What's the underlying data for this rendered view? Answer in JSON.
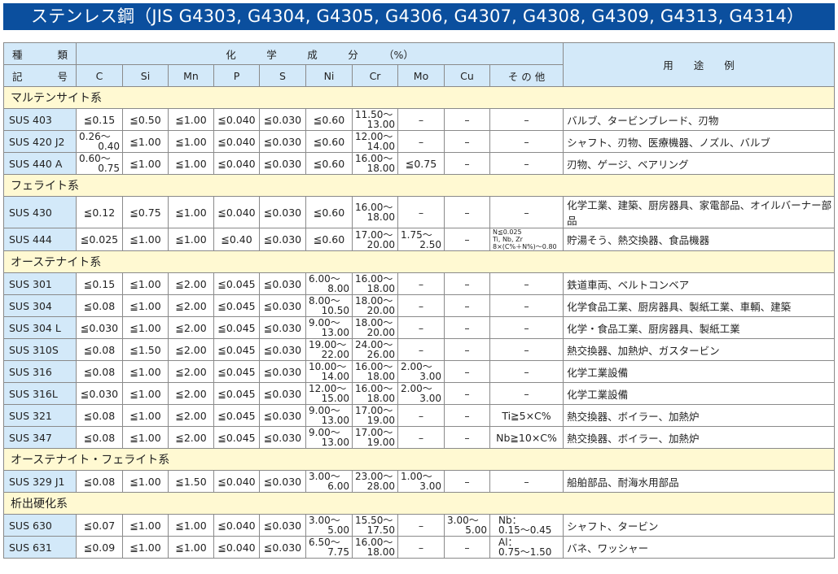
{
  "title": "ステンレス鋼（JIS G4303, G4304, G4305, G4306, G4307, G4308, G4309, G4313, G4314）",
  "header": {
    "kind_top": [
      "種",
      "類"
    ],
    "kind_bottom": [
      "記",
      "号"
    ],
    "chem": "化　　　学　　　成　　　分　　　（%）",
    "columns": [
      "C",
      "Si",
      "Mn",
      "P",
      "S",
      "Ni",
      "Cr",
      "Mo",
      "Cu",
      "そ の 他"
    ],
    "use": "用　　途　　例"
  },
  "sections": [
    {
      "name": "マルテンサイト系",
      "rows": [
        {
          "code": "SUS 403",
          "vals": [
            "≦0.15",
            "≦0.50",
            "≦1.00",
            "≦0.040",
            "≦0.030",
            "≦0.60",
            [
              "11.50～",
              "13.00"
            ],
            "–",
            "–",
            "–"
          ],
          "use": "バルブ、タービンブレード、刃物"
        },
        {
          "code": "SUS 420 J2",
          "vals": [
            [
              "0.26～",
              "0.40"
            ],
            "≦1.00",
            "≦1.00",
            "≦0.040",
            "≦0.030",
            "≦0.60",
            [
              "12.00～",
              "14.00"
            ],
            "–",
            "–",
            "–"
          ],
          "use": "シャフト、刃物、医療機器、ノズル、バルブ"
        },
        {
          "code": "SUS 440 A",
          "vals": [
            [
              "0.60～",
              "0.75"
            ],
            "≦1.00",
            "≦1.00",
            "≦0.040",
            "≦0.030",
            "≦0.60",
            [
              "16.00～",
              "18.00"
            ],
            "≦0.75",
            "–",
            "–"
          ],
          "use": "刃物、ゲージ、ベアリング"
        }
      ]
    },
    {
      "name": "フェライト系",
      "rows": [
        {
          "code": "SUS 430",
          "vals": [
            "≦0.12",
            "≦0.75",
            "≦1.00",
            "≦0.040",
            "≦0.030",
            "≦0.60",
            [
              "16.00～",
              "18.00"
            ],
            "–",
            "–",
            "–"
          ],
          "use": "化学工業、建築、厨房器具、家電部品、オイルバーナー部品"
        },
        {
          "code": "SUS 444",
          "vals": [
            "≦0.025",
            "≦1.00",
            "≦1.00",
            "≦0.40",
            "≦0.030",
            "≦0.60",
            [
              "17.00～",
              "20.00"
            ],
            [
              "1.75～",
              "2.50"
            ],
            "–",
            {
              "tiny": [
                "N≦0.025",
                "Ti, Nb, Zr",
                "8×(C%＋N%)～0.80"
              ]
            }
          ],
          "use": "貯湯そう、熱交換器、食品機器"
        }
      ]
    },
    {
      "name": "オーステナイト系",
      "rows": [
        {
          "code": "SUS 301",
          "vals": [
            "≦0.15",
            "≦1.00",
            "≦2.00",
            "≦0.045",
            "≦0.030",
            [
              "6.00～",
              "8.00"
            ],
            [
              "16.00～",
              "18.00"
            ],
            "–",
            "–",
            "–"
          ],
          "use": "鉄道車両、ベルトコンベア"
        },
        {
          "code": "SUS 304",
          "vals": [
            "≦0.08",
            "≦1.00",
            "≦2.00",
            "≦0.045",
            "≦0.030",
            [
              "8.00～",
              "10.50"
            ],
            [
              "18.00～",
              "20.00"
            ],
            "–",
            "–",
            "–"
          ],
          "use": "化学食品工業、厨房器具、製紙工業、車輌、建築"
        },
        {
          "code": "SUS 304 L",
          "vals": [
            "≦0.030",
            "≦1.00",
            "≦2.00",
            "≦0.045",
            "≦0.030",
            [
              "9.00～",
              "13.00"
            ],
            [
              "18.00～",
              "20.00"
            ],
            "–",
            "–",
            "–"
          ],
          "use": "化学・食品工業、厨房器具、製紙工業"
        },
        {
          "code": "SUS 310S",
          "vals": [
            "≦0.08",
            "≦1.50",
            "≦2.00",
            "≦0.045",
            "≦0.030",
            [
              "19.00～",
              "22.00"
            ],
            [
              "24.00～",
              "26.00"
            ],
            "–",
            "–",
            "–"
          ],
          "use": "熱交換器、加熱炉、ガスタービン"
        },
        {
          "code": "SUS 316",
          "vals": [
            "≦0.08",
            "≦1.00",
            "≦2.00",
            "≦0.045",
            "≦0.030",
            [
              "10.00～",
              "14.00"
            ],
            [
              "16.00～",
              "18.00"
            ],
            [
              "2.00～",
              "3.00"
            ],
            "–",
            "–"
          ],
          "use": "化学工業設備"
        },
        {
          "code": "SUS 316L",
          "vals": [
            "≦0.030",
            "≦1.00",
            "≦2.00",
            "≦0.045",
            "≦0.030",
            [
              "12.00～",
              "15.00"
            ],
            [
              "16.00～",
              "18.00"
            ],
            [
              "2.00～",
              "3.00"
            ],
            "–",
            "–"
          ],
          "use": "化学工業設備"
        },
        {
          "code": "SUS 321",
          "vals": [
            "≦0.08",
            "≦1.00",
            "≦2.00",
            "≦0.045",
            "≦0.030",
            [
              "9.00～",
              "13.00"
            ],
            [
              "17.00～",
              "19.00"
            ],
            "–",
            "–",
            "Ti≧5×C%"
          ],
          "use": "熱交換器、ボイラー、加熱炉"
        },
        {
          "code": "SUS 347",
          "vals": [
            "≦0.08",
            "≦1.00",
            "≦2.00",
            "≦0.045",
            "≦0.030",
            [
              "9.00～",
              "13.00"
            ],
            [
              "17.00～",
              "19.00"
            ],
            "–",
            "–",
            "Nb≧10×C%"
          ],
          "use": "熱交換器、ボイラー、加熱炉"
        }
      ]
    },
    {
      "name": "オーステナイト・フェライト系",
      "rows": [
        {
          "code": "SUS 329 J1",
          "vals": [
            "≦0.08",
            "≦1.00",
            "≦1.50",
            "≦0.040",
            "≦0.030",
            [
              "3.00～",
              "6.00"
            ],
            [
              "23.00～",
              "28.00"
            ],
            [
              "1.00～",
              "3.00"
            ],
            "–",
            "–"
          ],
          "use": "船舶部品、耐海水用部品"
        }
      ]
    },
    {
      "name": "析出硬化系",
      "rows": [
        {
          "code": "SUS 630",
          "vals": [
            "≦0.07",
            "≦1.00",
            "≦1.00",
            "≦0.040",
            "≦0.030",
            [
              "3.00～",
              "5.00"
            ],
            [
              "15.50～",
              "17.50"
            ],
            "–",
            [
              "3.00～",
              "5.00"
            ],
            {
              "left": [
                "Nb：",
                "0.15～0.45"
              ]
            }
          ],
          "use": "シャフト、タービン"
        },
        {
          "code": "SUS 631",
          "vals": [
            "≦0.09",
            "≦1.00",
            "≦1.00",
            "≦0.040",
            "≦0.030",
            [
              "6.50～",
              "7.75"
            ],
            [
              "16.00～",
              "18.00"
            ],
            "–",
            "–",
            {
              "left": [
                "Al：",
                "0.75～1.50"
              ]
            }
          ],
          "use": "バネ、ワッシャー"
        }
      ]
    }
  ]
}
